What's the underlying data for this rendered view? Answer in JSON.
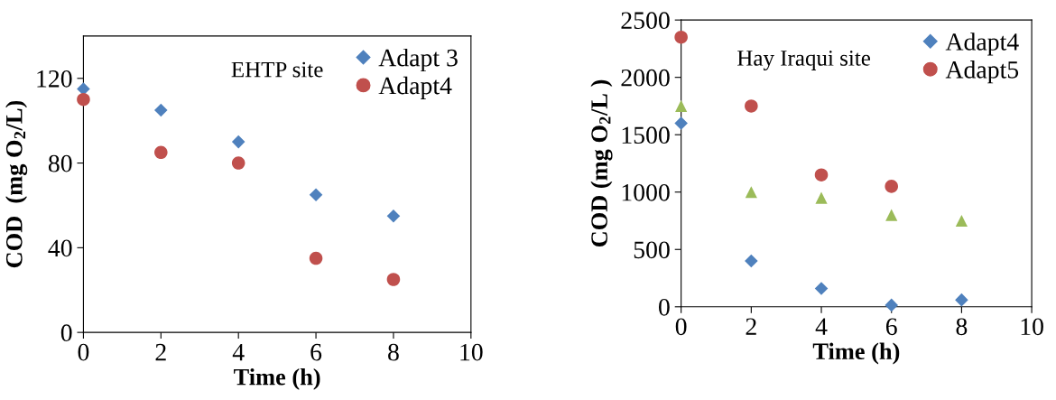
{
  "chart_data": [
    {
      "type": "scatter",
      "xlabel": "Time (h)",
      "ylabel": "COD  (mg O$_{2}$/L)",
      "annotations": [
        "EHTP site"
      ],
      "xlim": [
        0,
        10
      ],
      "xticks": [
        0,
        2,
        4,
        6,
        8,
        10
      ],
      "ylim": [
        0,
        140
      ],
      "yticks": [
        0,
        40,
        80,
        120
      ],
      "legend": "top right",
      "grid": false,
      "x": [
        0,
        2,
        4,
        6,
        8
      ],
      "series": [
        {
          "name": "Adapt 3",
          "color": "#4f81bd",
          "marker": "diamond",
          "values": [
            115,
            105,
            90,
            65,
            55
          ]
        },
        {
          "name": "Adapt4",
          "color": "#c0504d",
          "marker": "circle",
          "values": [
            110,
            85,
            80,
            35,
            25
          ]
        }
      ]
    },
    {
      "type": "scatter",
      "xlabel": "Time (h)",
      "ylabel": "COD (mg O$_{2}$/L )",
      "annotations": [
        "Hay Iraqui site"
      ],
      "xlim": [
        0,
        10
      ],
      "xticks": [
        0,
        2,
        4,
        6,
        8,
        10
      ],
      "ylim": [
        0,
        2500
      ],
      "yticks": [
        0,
        500,
        1000,
        1500,
        2000,
        2500
      ],
      "legend": "top right",
      "grid": false,
      "x": [
        0,
        2,
        4,
        6,
        8
      ],
      "series": [
        {
          "name": "Adapt4",
          "color": "#4f81bd",
          "marker": "diamond",
          "values": [
            1600,
            400,
            160,
            15,
            60
          ]
        },
        {
          "name": "Adapt5",
          "color": "#c0504d",
          "marker": "circle",
          "values": [
            2350,
            1750,
            1150,
            1050,
            null
          ]
        },
        {
          "color": "#9bbb59",
          "marker": "triangle",
          "values": [
            1750,
            1000,
            950,
            800,
            750
          ]
        }
      ]
    }
  ]
}
